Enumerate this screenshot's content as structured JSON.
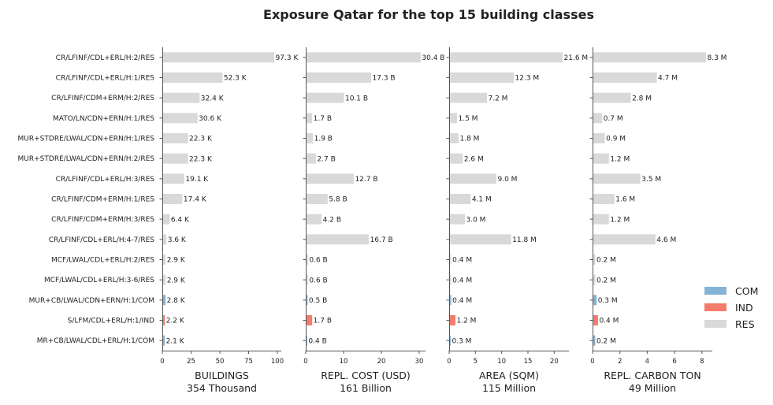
{
  "title": "Exposure Qatar for the top 15 building classes",
  "colors": {
    "COM": "#86b3d5",
    "IND": "#f47c6d",
    "RES": "#d9d9d9"
  },
  "legend": [
    {
      "label": "COM",
      "key": "COM"
    },
    {
      "label": "IND",
      "key": "IND"
    },
    {
      "label": "RES",
      "key": "RES"
    }
  ],
  "chart_data": {
    "type": "bar",
    "orientation": "horizontal",
    "categories": [
      "CR/LFINF/CDL+ERL/H:2/RES",
      "CR/LFINF/CDL+ERL/H:1/RES",
      "CR/LFINF/CDM+ERM/H:2/RES",
      "MATO/LN/CDN+ERN/H:1/RES",
      "MUR+STDRE/LWAL/CDN+ERN/H:1/RES",
      "MUR+STDRE/LWAL/CDN+ERN/H:2/RES",
      "CR/LFINF/CDL+ERL/H:3/RES",
      "CR/LFINF/CDM+ERM/H:1/RES",
      "CR/LFINF/CDM+ERM/H:3/RES",
      "CR/LFINF/CDL+ERL/H:4-7/RES",
      "MCF/LWAL/CDL+ERL/H:2/RES",
      "MCF/LWAL/CDL+ERL/H:3-6/RES",
      "MUR+CB/LWAL/CDN+ERN/H:1/COM",
      "S/LFM/CDL+ERL/H:1/IND",
      "MR+CB/LWAL/CDL+ERL/H:1/COM"
    ],
    "occupancy": [
      "RES",
      "RES",
      "RES",
      "RES",
      "RES",
      "RES",
      "RES",
      "RES",
      "RES",
      "RES",
      "RES",
      "RES",
      "COM",
      "IND",
      "COM"
    ],
    "panels": [
      {
        "xlabel": "BUILDINGS",
        "total": "354 Thousand",
        "xlim": [
          0,
          100
        ],
        "ticks": [
          "0",
          "25",
          "50",
          "75",
          "100"
        ],
        "tick_values": [
          0,
          25,
          50,
          75,
          100
        ],
        "values": [
          97.3,
          52.3,
          32.4,
          30.6,
          22.3,
          22.3,
          19.1,
          17.4,
          6.4,
          3.6,
          2.9,
          2.9,
          2.8,
          2.2,
          2.1
        ],
        "labels": [
          "97.3 K",
          "52.3 K",
          "32.4 K",
          "30.6 K",
          "22.3 K",
          "22.3 K",
          "19.1 K",
          "17.4 K",
          "6.4 K",
          "3.6 K",
          "2.9 K",
          "2.9 K",
          "2.8 K",
          "2.2 K",
          "2.1 K"
        ]
      },
      {
        "xlabel": "REPL. COST (USD)",
        "total": "161 Billion",
        "xlim": [
          0,
          30
        ],
        "ticks": [
          "0",
          "10",
          "20",
          "30"
        ],
        "tick_values": [
          0,
          10,
          20,
          30
        ],
        "values": [
          30.4,
          17.3,
          10.1,
          1.7,
          1.9,
          2.7,
          12.7,
          5.8,
          4.2,
          16.7,
          0.6,
          0.6,
          0.5,
          1.7,
          0.4
        ],
        "labels": [
          "30.4 B",
          "17.3 B",
          "10.1 B",
          "1.7 B",
          "1.9 B",
          "2.7 B",
          "12.7 B",
          "5.8 B",
          "4.2 B",
          "16.7 B",
          "0.6 B",
          "0.6 B",
          "0.5 B",
          "1.7 B",
          "0.4 B"
        ]
      },
      {
        "xlabel": "AREA (SQM)",
        "total": "115 Million",
        "xlim": [
          0,
          21.6
        ],
        "ticks": [
          "0",
          "5",
          "10",
          "15",
          "20"
        ],
        "tick_values": [
          0,
          5,
          10,
          15,
          20
        ],
        "values": [
          21.6,
          12.3,
          7.2,
          1.5,
          1.8,
          2.6,
          9.0,
          4.1,
          3.0,
          11.8,
          0.4,
          0.4,
          0.4,
          1.2,
          0.3
        ],
        "labels": [
          "21.6 M",
          "12.3 M",
          "7.2 M",
          "1.5 M",
          "1.8 M",
          "2.6 M",
          "9.0 M",
          "4.1 M",
          "3.0 M",
          "11.8 M",
          "0.4 M",
          "0.4 M",
          "0.4 M",
          "1.2 M",
          "0.3 M"
        ]
      },
      {
        "xlabel": "REPL. CARBON TON",
        "total": "49 Million",
        "xlim": [
          0,
          8.3
        ],
        "ticks": [
          "0",
          "2",
          "4",
          "6",
          "8"
        ],
        "tick_values": [
          0,
          2,
          4,
          6,
          8
        ],
        "values": [
          8.3,
          4.7,
          2.8,
          0.7,
          0.9,
          1.2,
          3.5,
          1.6,
          1.2,
          4.6,
          0.2,
          0.2,
          0.3,
          0.4,
          0.2
        ],
        "labels": [
          "8.3 M",
          "4.7 M",
          "2.8 M",
          "0.7 M",
          "0.9 M",
          "1.2 M",
          "3.5 M",
          "1.6 M",
          "1.2 M",
          "4.6 M",
          "0.2 M",
          "0.2 M",
          "0.3 M",
          "0.4 M",
          "0.2 M"
        ]
      }
    ],
    "legend_position": "bottom-right",
    "grid": false
  }
}
